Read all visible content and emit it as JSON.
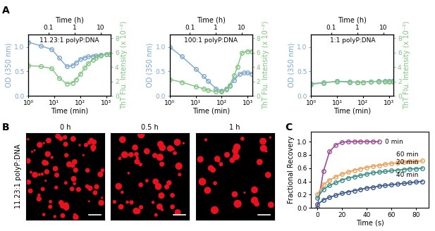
{
  "chart_data": [
    {
      "panel": "A",
      "type": "line",
      "title": "11.23:1 polyP:DNA",
      "xlabel": "Time (min)",
      "x2label": "Time (h)",
      "ylabel": "OD (350 nm)",
      "y2label": "ThT Flu. Intensity (x 10⁻²)",
      "log": "x",
      "xlim": [
        1,
        1500
      ],
      "xticks": [
        {
          "value": 1,
          "label": "10⁰"
        },
        {
          "value": 10,
          "label": "10¹"
        },
        {
          "value": 100,
          "label": "10²"
        },
        {
          "value": 1000,
          "label": "10³"
        }
      ],
      "x2lim": [
        0.016667,
        25
      ],
      "x2ticks": [
        0.1,
        1,
        10
      ],
      "ylim": [
        0,
        1.25
      ],
      "yticks": [
        {
          "value": 0,
          "label": "0.0"
        },
        {
          "value": 0.5,
          "label": "0.5"
        },
        {
          "value": 1,
          "label": "1.0"
        }
      ],
      "y2lim": [
        0,
        8.5
      ],
      "y2ticks": [
        0,
        2,
        4,
        6,
        8
      ],
      "series": [
        {
          "color": "#7aa6cf",
          "marker": "o",
          "line_style": "solid",
          "x": [
            1,
            3,
            8,
            15,
            30,
            50,
            70,
            100,
            150,
            200,
            300,
            400,
            600,
            1000,
            1400
          ],
          "values": [
            1.1,
            1.02,
            0.95,
            0.78,
            0.6,
            0.62,
            0.68,
            0.75,
            0.78,
            0.8,
            0.81,
            0.82,
            0.84,
            0.85,
            0.85
          ]
        },
        {
          "color": "#7dc47d",
          "marker": "o",
          "line_style": "solid",
          "axis": "y2",
          "x": [
            1,
            3,
            8,
            15,
            30,
            50,
            70,
            100,
            150,
            200,
            300,
            400,
            600,
            1000,
            1400
          ],
          "values": [
            4.2,
            4.1,
            3.8,
            2.5,
            1.7,
            1.8,
            2.3,
            3.0,
            3.9,
            4.5,
            5.0,
            5.3,
            5.6,
            5.8,
            5.8
          ]
        }
      ]
    },
    {
      "type": "line",
      "title": "100:1 polyP:DNA",
      "xlabel": "Time (min)",
      "x2label": "Time (h)",
      "ylabel": "OD (350 nm)",
      "y2label": "ThT Flu. Intensity (x 10⁻²)",
      "log": "x",
      "xlim": [
        1,
        1500
      ],
      "xticks": [
        {
          "value": 1,
          "label": "10⁰"
        },
        {
          "value": 10,
          "label": "10¹"
        },
        {
          "value": 100,
          "label": "10²"
        },
        {
          "value": 1000,
          "label": "10³"
        }
      ],
      "x2lim": [
        0.016667,
        25
      ],
      "x2ticks": [
        0.1,
        1,
        10
      ],
      "ylim": [
        0,
        1.25
      ],
      "yticks": [
        {
          "value": 0,
          "label": "0.0"
        },
        {
          "value": 0.5,
          "label": "0.5"
        },
        {
          "value": 1,
          "label": "1.0"
        }
      ],
      "y2lim": [
        0,
        8.5
      ],
      "y2ticks": [
        0,
        2,
        4,
        6,
        8
      ],
      "series": [
        {
          "color": "#7aa6cf",
          "marker": "o",
          "line_style": "solid",
          "x": [
            1,
            3,
            10,
            20,
            30,
            60,
            100,
            150,
            200,
            300,
            500,
            700,
            1000,
            1400
          ],
          "values": [
            1.0,
            0.8,
            0.55,
            0.4,
            0.3,
            0.15,
            0.1,
            0.14,
            0.2,
            0.32,
            0.45,
            0.47,
            0.47,
            0.45
          ]
        },
        {
          "color": "#7dc47d",
          "marker": "o",
          "line_style": "solid",
          "axis": "y2",
          "x": [
            1,
            3,
            10,
            20,
            30,
            60,
            100,
            150,
            200,
            300,
            400,
            600,
            1000,
            1400
          ],
          "values": [
            2.3,
            1.9,
            1.3,
            1.0,
            0.8,
            0.6,
            0.6,
            0.9,
            1.5,
            2.8,
            4.0,
            6.0,
            6.2,
            6.2
          ]
        }
      ]
    },
    {
      "type": "line",
      "title": "1:1 polyP:DNA",
      "xlabel": "Time (min)",
      "x2label": "Time (h)",
      "ylabel": "OD (350 nm)",
      "y2label": "ThT Flu. Intensity (x 10⁻²)",
      "log": "x",
      "xlim": [
        1,
        1500
      ],
      "xticks": [
        {
          "value": 1,
          "label": "10⁰"
        },
        {
          "value": 10,
          "label": "10¹"
        },
        {
          "value": 100,
          "label": "10²"
        },
        {
          "value": 1000,
          "label": "10³"
        }
      ],
      "x2lim": [
        0.016667,
        25
      ],
      "x2ticks": [
        0.1,
        1,
        10
      ],
      "ylim": [
        0,
        1.25
      ],
      "yticks": [
        {
          "value": 0,
          "label": "0.0"
        },
        {
          "value": 0.5,
          "label": "0.5"
        },
        {
          "value": 1,
          "label": "1.0"
        }
      ],
      "y2lim": [
        0,
        8.5
      ],
      "y2ticks": [
        0,
        2,
        4,
        6,
        8
      ],
      "series": [
        {
          "color": "#7aa6cf",
          "marker": "o",
          "line_style": "solid",
          "x": [
            1,
            3,
            10,
            30,
            60,
            100,
            200,
            400,
            700,
            1000,
            1400
          ],
          "values": [
            0.25,
            0.27,
            0.3,
            0.29,
            0.28,
            0.28,
            0.29,
            0.3,
            0.3,
            0.3,
            0.3
          ]
        },
        {
          "color": "#7dc47d",
          "marker": "o",
          "line_style": "solid",
          "axis": "y2",
          "x": [
            1,
            3,
            10,
            30,
            60,
            100,
            200,
            400,
            700,
            1000,
            1400
          ],
          "values": [
            1.6,
            1.8,
            2.0,
            1.9,
            1.9,
            1.9,
            2.0,
            2.0,
            2.0,
            2.0,
            2.0
          ]
        }
      ]
    },
    {
      "panel": "B",
      "type": "image",
      "ylabel": "11.23:1 polyP:DNA",
      "categories": [
        "0 h",
        "0.5 h",
        "1 h"
      ]
    },
    {
      "panel": "C",
      "type": "line",
      "xlabel": "Time (s)",
      "ylabel": "Fractional Recovery",
      "xlim": [
        -5,
        90
      ],
      "xticks": [
        0,
        20,
        40,
        60,
        80
      ],
      "ylim": [
        0,
        1.15
      ],
      "yticks": [
        {
          "value": 0,
          "label": "0.0"
        },
        {
          "value": 0.2,
          "label": "0.2"
        },
        {
          "value": 0.4,
          "label": "0.4"
        },
        {
          "value": 0.6,
          "label": "0.6"
        },
        {
          "value": 0.8,
          "label": "0.8"
        },
        {
          "value": 1,
          "label": "1.0"
        }
      ],
      "x": [
        0,
        5,
        10,
        15,
        20,
        25,
        30,
        35,
        40,
        45,
        50,
        55,
        60,
        65,
        70,
        75,
        80,
        85
      ],
      "series": [
        {
          "name": "0 min",
          "color": "#9b4f96",
          "marker": "o",
          "line_style": "solid",
          "values": [
            0.0,
            0.55,
            0.85,
            0.95,
            0.99,
            1.0,
            1.0,
            1.0,
            1.0,
            1.0,
            1.0,
            null,
            null,
            null,
            null,
            null,
            null,
            null
          ]
        },
        {
          "name": "60 min",
          "color": "#e8a25a",
          "marker": "o",
          "line_style": "solid",
          "values": [
            0.2,
            0.35,
            0.42,
            0.47,
            0.51,
            0.54,
            0.57,
            0.59,
            0.61,
            0.63,
            0.64,
            0.66,
            0.67,
            0.68,
            0.69,
            0.7,
            0.7,
            0.71
          ]
        },
        {
          "name": "20 min",
          "color": "#3e8f8a",
          "marker": "o",
          "line_style": "solid",
          "values": [
            0.15,
            0.28,
            0.34,
            0.38,
            0.42,
            0.45,
            0.47,
            0.49,
            0.51,
            0.53,
            0.54,
            0.55,
            0.56,
            0.57,
            0.58,
            0.59,
            0.59,
            0.6
          ]
        },
        {
          "name": "40 min",
          "color": "#3a5a8c",
          "marker": "o",
          "line_style": "solid",
          "values": [
            0.05,
            0.12,
            0.16,
            0.19,
            0.22,
            0.24,
            0.26,
            0.28,
            0.3,
            0.31,
            0.33,
            0.34,
            0.35,
            0.36,
            0.37,
            0.38,
            0.39,
            0.4
          ]
        }
      ]
    }
  ]
}
